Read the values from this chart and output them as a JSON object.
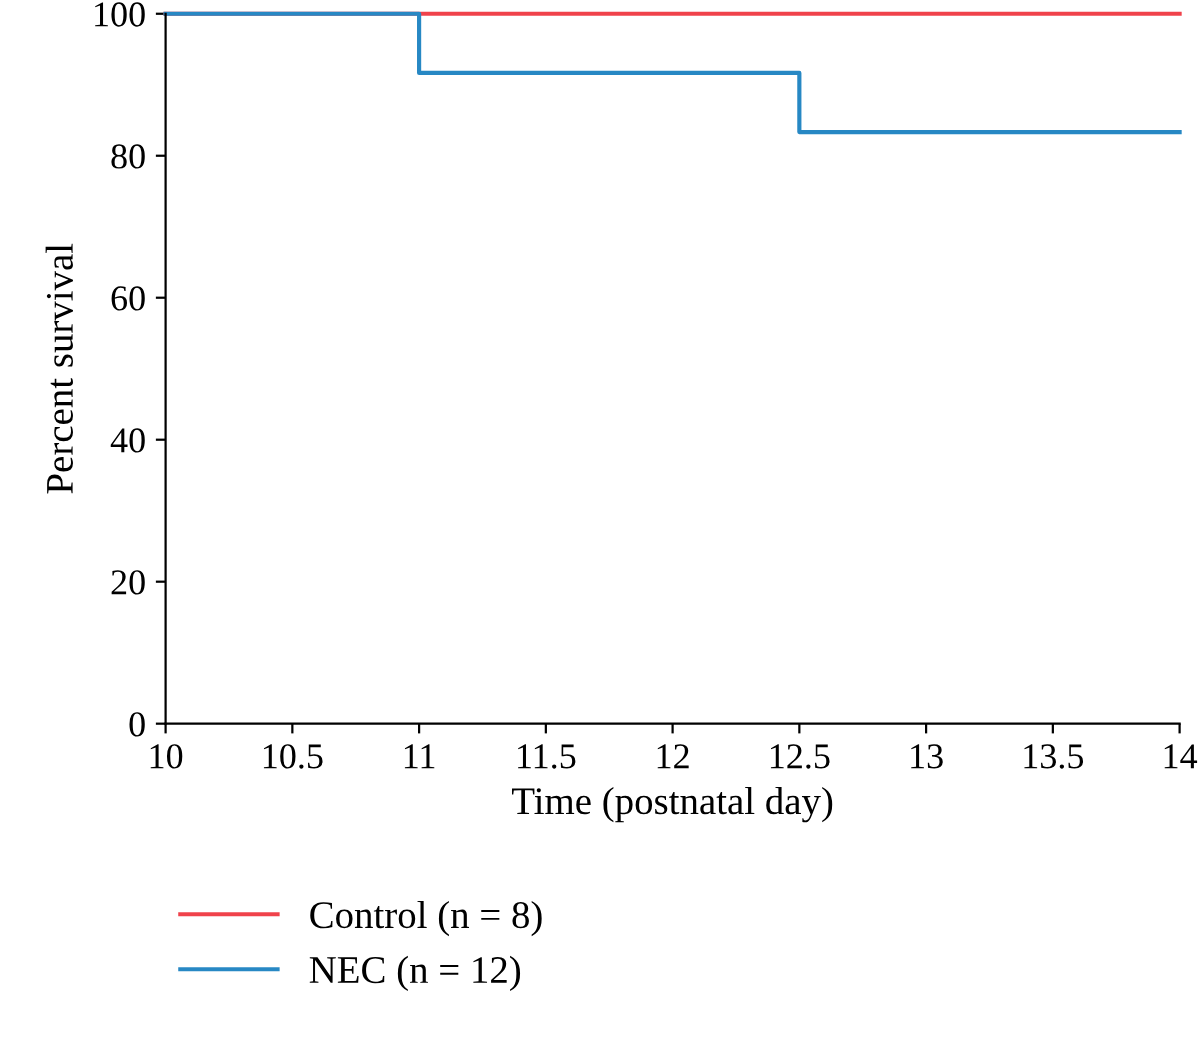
{
  "chart_data": {
    "type": "step",
    "xlabel": "Time (postnatal day)",
    "ylabel": "Percent survival",
    "series": [
      {
        "name": "Control (n = 8)",
        "color": "#f0424b",
        "x": [
          10,
          14
        ],
        "values": [
          100,
          100
        ]
      },
      {
        "name": "NEC (n = 12)",
        "color": "#2788c4",
        "x": [
          10,
          11,
          12.5,
          14
        ],
        "values": [
          100,
          91.67,
          83.33,
          83.33
        ]
      }
    ],
    "xlim": [
      10,
      14
    ],
    "xticks": [
      10,
      10.5,
      11,
      11.5,
      12,
      12.5,
      13,
      13.5,
      14
    ],
    "ylim": [
      0,
      100
    ],
    "yticks": [
      0,
      20,
      40,
      60,
      80,
      100
    ],
    "grid": false,
    "legend": "bottom left"
  }
}
